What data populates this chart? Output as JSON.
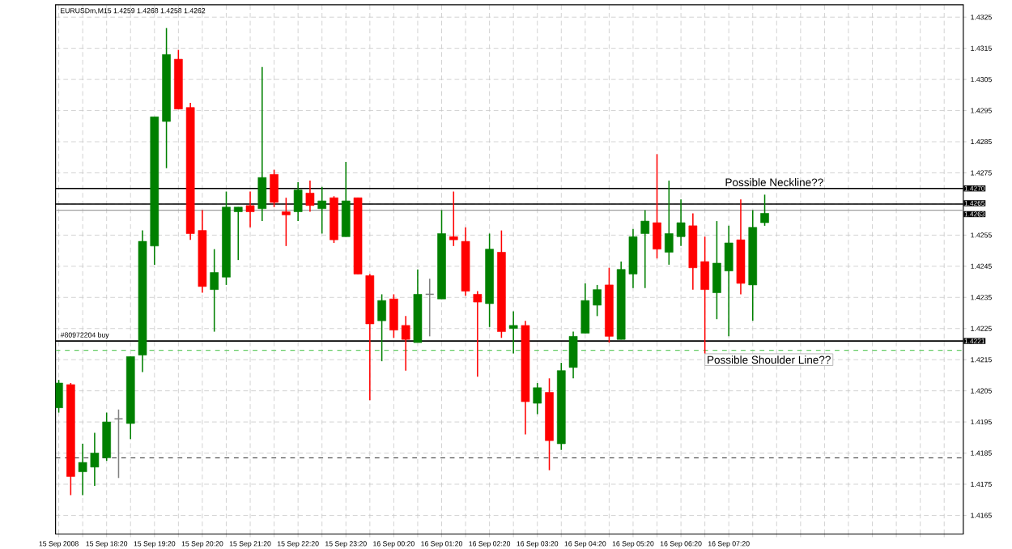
{
  "chart_data": {
    "type": "candlestick",
    "title": "EURUSDm,M15 1.4259 1.4268 1.4258 1.4262",
    "x": [
      "2008-09-15T17:20",
      "2008-09-15T17:35",
      "2008-09-15T17:50",
      "2008-09-15T18:05",
      "2008-09-15T18:20",
      "2008-09-15T18:35",
      "2008-09-15T18:50",
      "2008-09-15T19:05",
      "2008-09-15T19:20",
      "2008-09-15T19:35",
      "2008-09-15T19:50",
      "2008-09-15T20:05",
      "2008-09-15T20:20",
      "2008-09-15T20:35",
      "2008-09-15T20:50",
      "2008-09-15T21:05",
      "2008-09-15T21:20",
      "2008-09-15T21:35",
      "2008-09-15T21:50",
      "2008-09-15T22:05",
      "2008-09-15T22:20",
      "2008-09-15T22:35",
      "2008-09-15T22:50",
      "2008-09-15T23:05",
      "2008-09-15T23:20",
      "2008-09-15T23:35",
      "2008-09-15T23:50",
      "2008-09-16T00:05",
      "2008-09-16T00:20",
      "2008-09-16T00:35",
      "2008-09-16T00:50",
      "2008-09-16T01:05",
      "2008-09-16T01:20",
      "2008-09-16T01:35",
      "2008-09-16T01:50",
      "2008-09-16T02:05",
      "2008-09-16T02:20",
      "2008-09-16T02:35",
      "2008-09-16T02:50",
      "2008-09-16T03:05",
      "2008-09-16T03:20",
      "2008-09-16T03:35",
      "2008-09-16T03:50",
      "2008-09-16T04:05",
      "2008-09-16T04:20",
      "2008-09-16T04:35",
      "2008-09-16T04:50",
      "2008-09-16T05:05",
      "2008-09-16T05:20",
      "2008-09-16T05:35",
      "2008-09-16T05:50",
      "2008-09-16T06:05",
      "2008-09-16T06:20",
      "2008-09-16T06:35",
      "2008-09-16T06:50",
      "2008-09-16T07:05",
      "2008-09-16T07:20",
      "2008-09-16T07:35",
      "2008-09-16T07:50",
      "2008-09-16T08:05"
    ],
    "ohlc": [
      [
        1.41995,
        1.42085,
        1.4198,
        1.42075
      ],
      [
        1.4207,
        1.42075,
        1.41715,
        1.41775
      ],
      [
        1.4179,
        1.4188,
        1.41715,
        1.4182
      ],
      [
        1.41805,
        1.41915,
        1.41745,
        1.4185
      ],
      [
        1.41835,
        1.4198,
        1.41825,
        1.4195
      ],
      [
        1.4196,
        1.4199,
        1.4177,
        1.4196
      ],
      [
        1.41945,
        1.4216,
        1.41895,
        1.4216
      ],
      [
        1.42165,
        1.42565,
        1.4211,
        1.4253
      ],
      [
        1.42515,
        1.4293,
        1.42455,
        1.4293
      ],
      [
        1.42915,
        1.43215,
        1.42765,
        1.4313
      ],
      [
        1.43115,
        1.43145,
        1.42955,
        1.42955
      ],
      [
        1.4296,
        1.42975,
        1.42535,
        1.42555
      ],
      [
        1.42565,
        1.4263,
        1.42365,
        1.42385
      ],
      [
        1.42375,
        1.42505,
        1.4224,
        1.4243
      ],
      [
        1.42415,
        1.4269,
        1.4239,
        1.4264
      ],
      [
        1.42625,
        1.4264,
        1.4247,
        1.4264
      ],
      [
        1.42645,
        1.4269,
        1.42575,
        1.42625
      ],
      [
        1.42635,
        1.4309,
        1.42595,
        1.42735
      ],
      [
        1.42745,
        1.4276,
        1.4264,
        1.42655
      ],
      [
        1.42625,
        1.4267,
        1.42515,
        1.42615
      ],
      [
        1.42625,
        1.4272,
        1.42595,
        1.42695
      ],
      [
        1.42685,
        1.42725,
        1.42625,
        1.42645
      ],
      [
        1.42635,
        1.42705,
        1.42555,
        1.4266
      ],
      [
        1.4267,
        1.42675,
        1.42525,
        1.42535
      ],
      [
        1.42545,
        1.42785,
        1.42545,
        1.4266
      ],
      [
        1.4267,
        1.4267,
        1.42425,
        1.42425
      ],
      [
        1.4242,
        1.42425,
        1.4202,
        1.42265
      ],
      [
        1.42275,
        1.4236,
        1.42145,
        1.4234
      ],
      [
        1.42345,
        1.4236,
        1.4222,
        1.42245
      ],
      [
        1.4226,
        1.4229,
        1.42115,
        1.42215
      ],
      [
        1.42205,
        1.4244,
        1.42205,
        1.4236
      ],
      [
        1.4236,
        1.4241,
        1.42225,
        1.4236
      ],
      [
        1.42345,
        1.4263,
        1.42345,
        1.42555
      ],
      [
        1.42545,
        1.4269,
        1.42515,
        1.42535
      ],
      [
        1.4253,
        1.42575,
        1.42355,
        1.4237
      ],
      [
        1.4236,
        1.4237,
        1.42095,
        1.42335
      ],
      [
        1.4233,
        1.42555,
        1.42255,
        1.42505
      ],
      [
        1.42495,
        1.42565,
        1.4222,
        1.4224
      ],
      [
        1.4225,
        1.42305,
        1.4217,
        1.4226
      ],
      [
        1.4226,
        1.42275,
        1.4191,
        1.42015
      ],
      [
        1.4201,
        1.42075,
        1.41975,
        1.4206
      ],
      [
        1.42045,
        1.4209,
        1.41795,
        1.4189
      ],
      [
        1.4188,
        1.4214,
        1.4186,
        1.42115
      ],
      [
        1.42125,
        1.4224,
        1.4209,
        1.42225
      ],
      [
        1.42235,
        1.42395,
        1.42235,
        1.4234
      ],
      [
        1.42325,
        1.4239,
        1.4229,
        1.42375
      ],
      [
        1.4239,
        1.42445,
        1.42205,
        1.42225
      ],
      [
        1.42215,
        1.42465,
        1.42215,
        1.4244
      ],
      [
        1.42425,
        1.4257,
        1.4238,
        1.42545
      ],
      [
        1.42555,
        1.4263,
        1.4238,
        1.42595
      ],
      [
        1.4259,
        1.4281,
        1.42475,
        1.42505
      ],
      [
        1.42495,
        1.42725,
        1.42455,
        1.42555
      ],
      [
        1.42545,
        1.42665,
        1.42515,
        1.4259
      ],
      [
        1.4258,
        1.4262,
        1.42375,
        1.42445
      ],
      [
        1.42465,
        1.42545,
        1.4217,
        1.42375
      ],
      [
        1.42365,
        1.42595,
        1.4228,
        1.4246
      ],
      [
        1.42435,
        1.4258,
        1.42225,
        1.42525
      ],
      [
        1.42535,
        1.42665,
        1.4236,
        1.42395
      ],
      [
        1.4239,
        1.4263,
        1.42275,
        1.42575
      ],
      [
        1.4259,
        1.4268,
        1.4258,
        1.4262
      ]
    ],
    "colors": [
      "#008000",
      "#ff0000",
      "#008000",
      "#008000",
      "#008000",
      "#808080",
      "#008000",
      "#008000",
      "#008000",
      "#008000",
      "#ff0000",
      "#ff0000",
      "#ff0000",
      "#008000",
      "#008000",
      "#008000",
      "#ff0000",
      "#008000",
      "#ff0000",
      "#ff0000",
      "#008000",
      "#ff0000",
      "#008000",
      "#ff0000",
      "#008000",
      "#ff0000",
      "#ff0000",
      "#008000",
      "#ff0000",
      "#ff0000",
      "#008000",
      "#808080",
      "#008000",
      "#ff0000",
      "#ff0000",
      "#ff0000",
      "#008000",
      "#ff0000",
      "#008000",
      "#ff0000",
      "#008000",
      "#ff0000",
      "#008000",
      "#008000",
      "#008000",
      "#008000",
      "#ff0000",
      "#008000",
      "#008000",
      "#008000",
      "#ff0000",
      "#008000",
      "#008000",
      "#ff0000",
      "#ff0000",
      "#008000",
      "#008000",
      "#ff0000",
      "#008000",
      "#008000"
    ],
    "xlim": [
      "2008-09-15T17:16",
      "2008-09-16T12:14"
    ],
    "xticks": [
      {
        "value": "2008-09-15T17:20",
        "label": "15 Sep 2008"
      },
      {
        "value": "2008-09-15T17:50",
        "label": null
      },
      {
        "value": "2008-09-15T18:20",
        "label": "15 Sep 18:20"
      },
      {
        "value": "2008-09-15T18:50",
        "label": null
      },
      {
        "value": "2008-09-15T19:20",
        "label": "15 Sep 19:20"
      },
      {
        "value": "2008-09-15T19:50",
        "label": null
      },
      {
        "value": "2008-09-15T20:20",
        "label": "15 Sep 20:20"
      },
      {
        "value": "2008-09-15T20:50",
        "label": null
      },
      {
        "value": "2008-09-15T21:20",
        "label": "15 Sep 21:20"
      },
      {
        "value": "2008-09-15T21:50",
        "label": null
      },
      {
        "value": "2008-09-15T22:20",
        "label": "15 Sep 22:20"
      },
      {
        "value": "2008-09-15T22:50",
        "label": null
      },
      {
        "value": "2008-09-15T23:20",
        "label": "15 Sep 23:20"
      },
      {
        "value": "2008-09-15T23:50",
        "label": null
      },
      {
        "value": "2008-09-16T00:20",
        "label": "16 Sep 00:20"
      },
      {
        "value": "2008-09-16T00:50",
        "label": null
      },
      {
        "value": "2008-09-16T01:20",
        "label": "16 Sep 01:20"
      },
      {
        "value": "2008-09-16T01:50",
        "label": null
      },
      {
        "value": "2008-09-16T02:20",
        "label": "16 Sep 02:20"
      },
      {
        "value": "2008-09-16T02:50",
        "label": null
      },
      {
        "value": "2008-09-16T03:20",
        "label": "16 Sep 03:20"
      },
      {
        "value": "2008-09-16T03:50",
        "label": null
      },
      {
        "value": "2008-09-16T04:20",
        "label": "16 Sep 04:20"
      },
      {
        "value": "2008-09-16T04:50",
        "label": null
      },
      {
        "value": "2008-09-16T05:20",
        "label": "16 Sep 05:20"
      },
      {
        "value": "2008-09-16T05:50",
        "label": null
      },
      {
        "value": "2008-09-16T06:20",
        "label": "16 Sep 06:20"
      },
      {
        "value": "2008-09-16T06:50",
        "label": null
      },
      {
        "value": "2008-09-16T07:20",
        "label": "16 Sep 07:20"
      },
      {
        "value": "2008-09-16T07:50",
        "label": null
      },
      {
        "value": "2008-09-16T08:20",
        "label": null
      },
      {
        "value": "2008-09-16T08:50",
        "label": null
      },
      {
        "value": "2008-09-16T09:20",
        "label": null
      },
      {
        "value": "2008-09-16T09:50",
        "label": null
      },
      {
        "value": "2008-09-16T10:20",
        "label": null
      },
      {
        "value": "2008-09-16T10:50",
        "label": null
      },
      {
        "value": "2008-09-16T11:20",
        "label": null
      },
      {
        "value": "2008-09-16T11:50",
        "label": null
      }
    ],
    "ylim": [
      1.4159,
      1.4329
    ],
    "yticks": [
      1.4165,
      1.4175,
      1.4185,
      1.4195,
      1.4205,
      1.4215,
      1.4225,
      1.4235,
      1.4245,
      1.4255,
      {
        "value": 1.4265,
        "label": null
      },
      1.4275,
      1.4285,
      1.4295,
      1.4305,
      1.4315,
      1.4325
    ],
    "grid": true,
    "ref_lines": [
      {
        "axis": "y",
        "value": 1.427,
        "label": "Possible Neckline??",
        "color": "#000000",
        "line_style": "solid"
      },
      {
        "axis": "y",
        "value": 1.4265,
        "color": "#000000",
        "line_style": "solid"
      },
      {
        "axis": "y",
        "value": 1.4263,
        "color": "#a0a0a0",
        "line_style": "solid"
      },
      {
        "axis": "y",
        "value": 1.4221,
        "label": "#80972204 buy",
        "color": "#000000",
        "line_style": "solid"
      },
      {
        "axis": "y",
        "value": 1.4218,
        "label": "Possible Shoulder Line??",
        "color": "#66cc66",
        "line_style": "dashed"
      },
      {
        "axis": "y",
        "value": 1.41835,
        "color": "#404040",
        "line_style": "dashed"
      }
    ],
    "annotations": [
      "1.4270",
      "1.4265",
      "1.4263",
      "1.4221"
    ]
  }
}
